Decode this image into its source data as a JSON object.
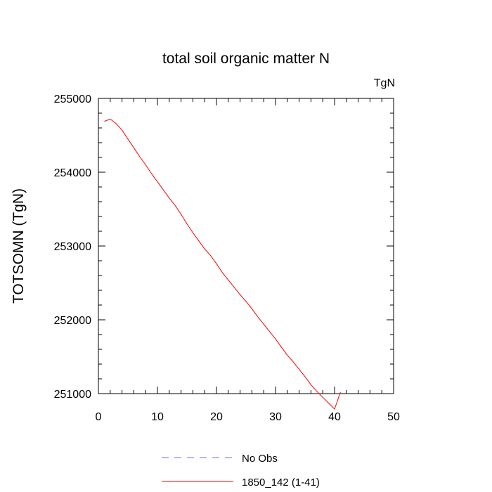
{
  "chart_data": {
    "type": "line",
    "title": "total soil organic matter N",
    "units_label": "TgN",
    "ylabel": "TOTSOMN  (TgN)",
    "xlabel": "",
    "xlim": [
      0,
      50
    ],
    "ylim": [
      251000,
      255000
    ],
    "x_ticks": [
      0,
      10,
      20,
      30,
      40,
      50
    ],
    "y_ticks": [
      251000,
      252000,
      253000,
      254000,
      255000
    ],
    "x_tick_labels": [
      "0",
      "10",
      "20",
      "30",
      "40",
      "50"
    ],
    "y_tick_labels": [
      "251000",
      "252000",
      "253000",
      "254000",
      "255000"
    ],
    "legend_position": "bottom",
    "series": [
      {
        "name": "No Obs",
        "color": "#6b6bff",
        "style": "dashed",
        "x": [],
        "y": []
      },
      {
        "name": "1850_142 (1-41)",
        "color": "#ff0000",
        "style": "solid",
        "x": [
          1,
          2,
          3,
          4,
          5,
          6,
          7,
          8,
          9,
          10,
          11,
          12,
          13,
          14,
          15,
          16,
          17,
          18,
          19,
          20,
          21,
          22,
          23,
          24,
          25,
          26,
          27,
          28,
          29,
          30,
          31,
          32,
          33,
          34,
          35,
          36,
          37,
          38,
          39,
          40,
          41
        ],
        "y": [
          254690,
          254720,
          254660,
          254570,
          254450,
          254330,
          254210,
          254100,
          253980,
          253870,
          253760,
          253650,
          253550,
          253430,
          253300,
          253180,
          253070,
          252960,
          252870,
          252760,
          252640,
          252540,
          252440,
          252340,
          252250,
          252150,
          252040,
          251940,
          251840,
          251740,
          251630,
          251520,
          251430,
          251330,
          251230,
          251120,
          251030,
          250950,
          250870,
          250790,
          251020
        ]
      }
    ]
  }
}
